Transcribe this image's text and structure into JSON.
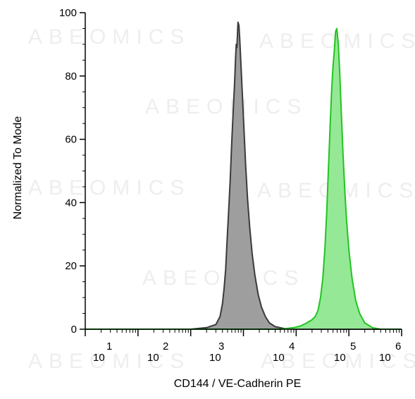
{
  "watermark": "ABEOMICS",
  "chart_data": {
    "type": "area",
    "title": "",
    "xlabel": "CD144 / VE-Cadherin PE",
    "ylabel": "Normalized To Mode",
    "x_scale": "log",
    "xlim": [
      1,
      1000000
    ],
    "ylim": [
      0,
      100
    ],
    "y_ticks": [
      0,
      20,
      40,
      60,
      80,
      100
    ],
    "x_tick_labels": [
      {
        "base": "10",
        "exp": "1"
      },
      {
        "base": "10",
        "exp": "2"
      },
      {
        "base": "10",
        "exp": "3"
      },
      {
        "base": "10",
        "exp": "4"
      },
      {
        "base": "10",
        "exp": "5"
      },
      {
        "base": "10",
        "exp": "6"
      }
    ],
    "grid": false,
    "legend": "none",
    "series": [
      {
        "color": "#9e9e9e",
        "edge": "#3a3a3a",
        "points": [
          [
            1,
            0
          ],
          [
            100,
            0
          ],
          [
            200,
            0.5
          ],
          [
            300,
            1.5
          ],
          [
            360,
            4
          ],
          [
            400,
            8
          ],
          [
            430,
            13
          ],
          [
            460,
            19
          ],
          [
            490,
            28
          ],
          [
            520,
            36
          ],
          [
            560,
            47
          ],
          [
            600,
            59
          ],
          [
            640,
            69
          ],
          [
            680,
            78
          ],
          [
            710,
            86
          ],
          [
            730,
            90
          ],
          [
            750,
            89
          ],
          [
            770,
            93
          ],
          [
            790,
            97
          ],
          [
            820,
            96
          ],
          [
            850,
            92
          ],
          [
            890,
            85
          ],
          [
            950,
            75
          ],
          [
            1020,
            64
          ],
          [
            1100,
            52
          ],
          [
            1200,
            41
          ],
          [
            1320,
            32
          ],
          [
            1460,
            24
          ],
          [
            1650,
            17
          ],
          [
            1900,
            11
          ],
          [
            2200,
            7
          ],
          [
            2600,
            4
          ],
          [
            3100,
            2
          ],
          [
            4000,
            0.8
          ],
          [
            6000,
            0.2
          ],
          [
            10000,
            0
          ],
          [
            1000000,
            0
          ]
        ]
      },
      {
        "color": "#95e895",
        "edge": "#22c422",
        "points": [
          [
            1,
            0
          ],
          [
            5000,
            0
          ],
          [
            9000,
            0.5
          ],
          [
            12000,
            1
          ],
          [
            16000,
            2
          ],
          [
            20000,
            3
          ],
          [
            23000,
            4
          ],
          [
            26000,
            6
          ],
          [
            29000,
            10
          ],
          [
            32000,
            16
          ],
          [
            35000,
            25
          ],
          [
            38000,
            37
          ],
          [
            41000,
            51
          ],
          [
            44000,
            64
          ],
          [
            47000,
            75
          ],
          [
            50000,
            83
          ],
          [
            53000,
            88
          ],
          [
            56000,
            94
          ],
          [
            59000,
            95
          ],
          [
            63000,
            90
          ],
          [
            67000,
            81
          ],
          [
            72000,
            68
          ],
          [
            77000,
            56
          ],
          [
            83000,
            45
          ],
          [
            90000,
            35
          ],
          [
            100000,
            25
          ],
          [
            115000,
            16
          ],
          [
            135000,
            9
          ],
          [
            160000,
            5
          ],
          [
            200000,
            2
          ],
          [
            280000,
            0.5
          ],
          [
            400000,
            0
          ],
          [
            1000000,
            0
          ]
        ]
      }
    ]
  }
}
